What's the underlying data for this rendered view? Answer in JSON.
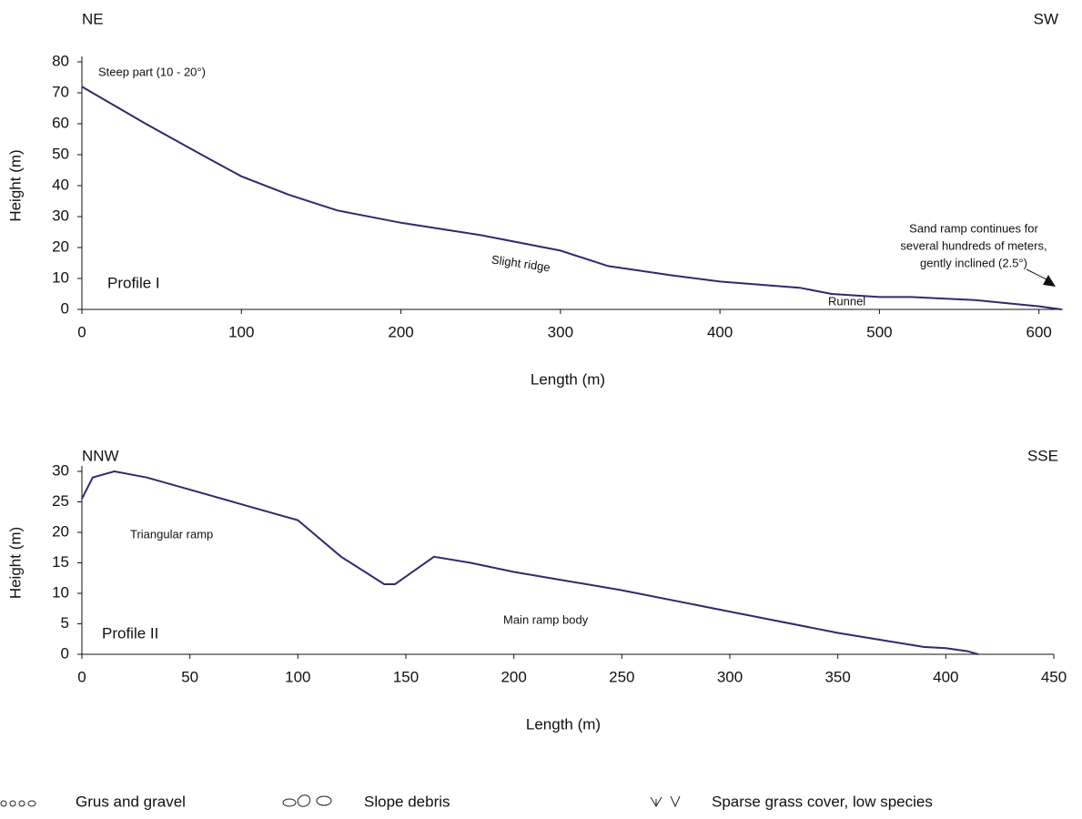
{
  "chart_data": [
    {
      "type": "line",
      "direction_left": "NE",
      "direction_right": "SW",
      "xlabel": "Length (m)",
      "ylabel": "Height (m)",
      "xlim": [
        0,
        615
      ],
      "ylim": [
        0,
        80
      ],
      "xticks": [
        0,
        100,
        200,
        300,
        400,
        500,
        600
      ],
      "yticks": [
        0,
        10,
        20,
        30,
        40,
        50,
        60,
        70,
        80
      ],
      "annotations": [
        "Steep part (10 - 20°)",
        "Slight ridge",
        "Runnel",
        "Profile I"
      ],
      "note_lines": [
        "Sand ramp continues for",
        "several hundreds of meters,",
        "gently inclined (2.5°)"
      ],
      "series": [
        {
          "color": "#2e2a6e",
          "x": [
            0,
            20,
            40,
            75,
            100,
            130,
            160,
            200,
            250,
            300,
            330,
            370,
            400,
            450,
            470,
            500,
            520,
            560,
            600,
            614
          ],
          "values": [
            72,
            66,
            60,
            50,
            43,
            37,
            32,
            28,
            24,
            19,
            14,
            11,
            9,
            7,
            5,
            4,
            4,
            3,
            1,
            0
          ]
        }
      ]
    },
    {
      "type": "line",
      "direction_left": "NNW",
      "direction_right": "SSE",
      "xlabel": "Length (m)",
      "ylabel": "Height (m)",
      "xlim": [
        0,
        450
      ],
      "ylim": [
        0,
        30
      ],
      "xticks": [
        0,
        50,
        100,
        150,
        200,
        250,
        300,
        350,
        400,
        450
      ],
      "yticks": [
        0,
        5,
        10,
        15,
        20,
        25,
        30
      ],
      "annotations": [
        "Triangular ramp",
        "Main ramp body",
        "Profile II"
      ],
      "series": [
        {
          "color": "#2e2a6e",
          "x": [
            0,
            5,
            15,
            30,
            50,
            75,
            100,
            120,
            140,
            145,
            155,
            163,
            180,
            200,
            250,
            300,
            350,
            390,
            400,
            410,
            415
          ],
          "values": [
            25.5,
            29,
            30,
            29,
            27,
            24.5,
            22,
            16,
            11.5,
            11.5,
            14,
            16,
            15,
            13.5,
            10.5,
            7,
            3.5,
            1.2,
            1,
            0.5,
            0
          ]
        }
      ]
    }
  ],
  "legend": [
    "Grus and gravel",
    "Slope debris",
    "Sparse grass cover, low species"
  ]
}
